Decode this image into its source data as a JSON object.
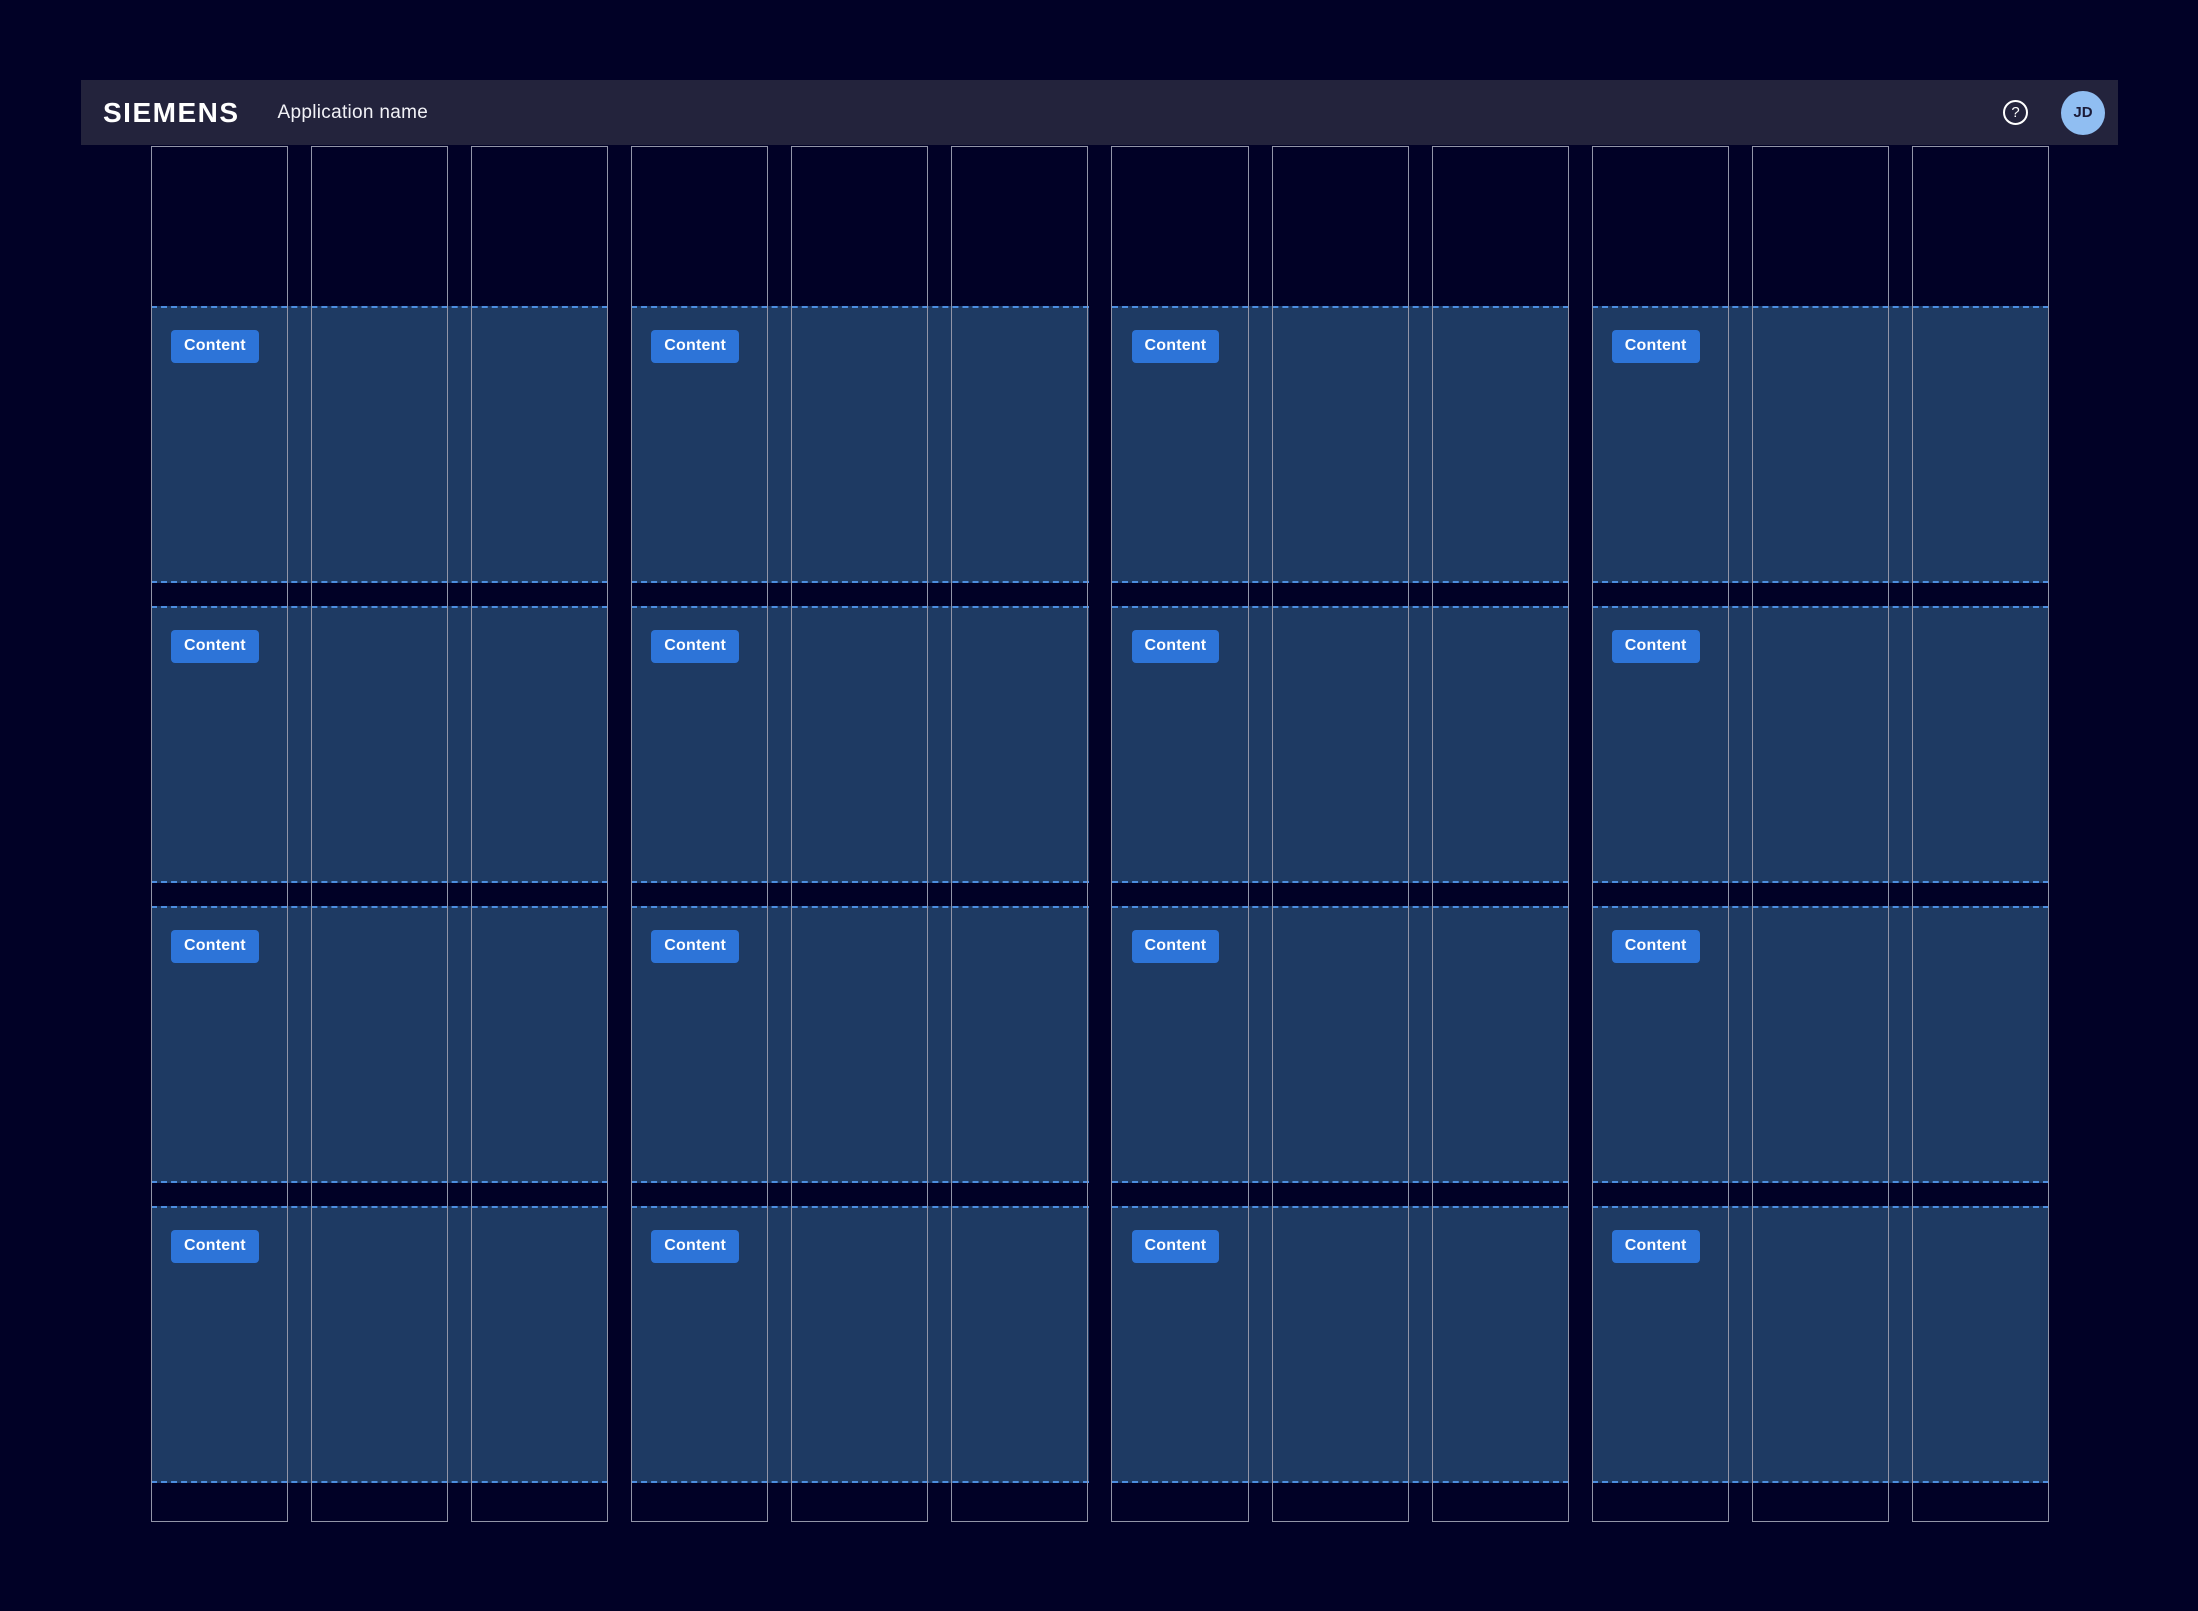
{
  "header": {
    "logo": "SIEMENS",
    "app_name": "Application name",
    "help_icon": "?",
    "avatar_initials": "JD"
  },
  "grid": {
    "columns": 12,
    "content_rows": 4,
    "groups": 4,
    "group_span": 3,
    "content_label": "Content"
  },
  "colors": {
    "background": "#010126",
    "header_bg": "#23233C",
    "column_border": "#9295A8",
    "content_fill": "#1E3A63",
    "content_dash": "#4C8DE0",
    "badge_bg": "#2D74D8",
    "badge_text": "#FFFFFF",
    "avatar_bg": "#90BEF2",
    "avatar_text": "#1B1B38"
  }
}
